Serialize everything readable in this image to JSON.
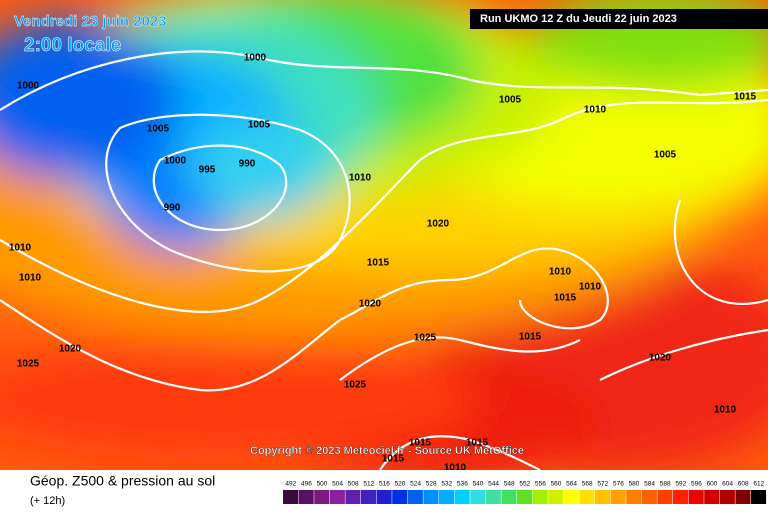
{
  "header": {
    "date": "Vendredi 23 juin 2023",
    "time": "2:00 locale",
    "run": "Run UKMO 12 Z du Jeudi 22 juin 2023"
  },
  "copyright": "Copyright © 2023 Meteociel.fr - Source UK MetOffice",
  "footer": {
    "title": "Géop. Z500 & pression au sol",
    "range": "(+ 12h)"
  },
  "isobar_labels": [
    1000,
    1000,
    1005,
    1005,
    1005,
    1010,
    1015,
    1000,
    995,
    990,
    990,
    1010,
    1005,
    1020,
    1010,
    1010,
    1015,
    1010,
    1010,
    1015,
    1020,
    1025,
    1015,
    1020,
    1025,
    1020,
    1025,
    1010,
    1015,
    1015,
    1015,
    1010
  ],
  "colorbar": {
    "labels": [
      492,
      496,
      500,
      504,
      508,
      512,
      516,
      520,
      524,
      528,
      532,
      536,
      540,
      544,
      548,
      552,
      556,
      560,
      564,
      568,
      572,
      576,
      580,
      584,
      588,
      592,
      596,
      600,
      604,
      608,
      612
    ],
    "colors": [
      "#3a0a3a",
      "#5a1060",
      "#7a1a80",
      "#8a20a0",
      "#6020b0",
      "#4020c0",
      "#2020d0",
      "#0030e0",
      "#0060f0",
      "#0090ff",
      "#00b0ff",
      "#00d0ff",
      "#30e0e0",
      "#40e0a0",
      "#40e060",
      "#60e020",
      "#a0f000",
      "#d0f000",
      "#ffff00",
      "#ffe000",
      "#ffc000",
      "#ffa000",
      "#ff8000",
      "#ff6000",
      "#ff4000",
      "#ff2000",
      "#f00000",
      "#d00000",
      "#b00000",
      "#800000",
      "#000000"
    ]
  }
}
